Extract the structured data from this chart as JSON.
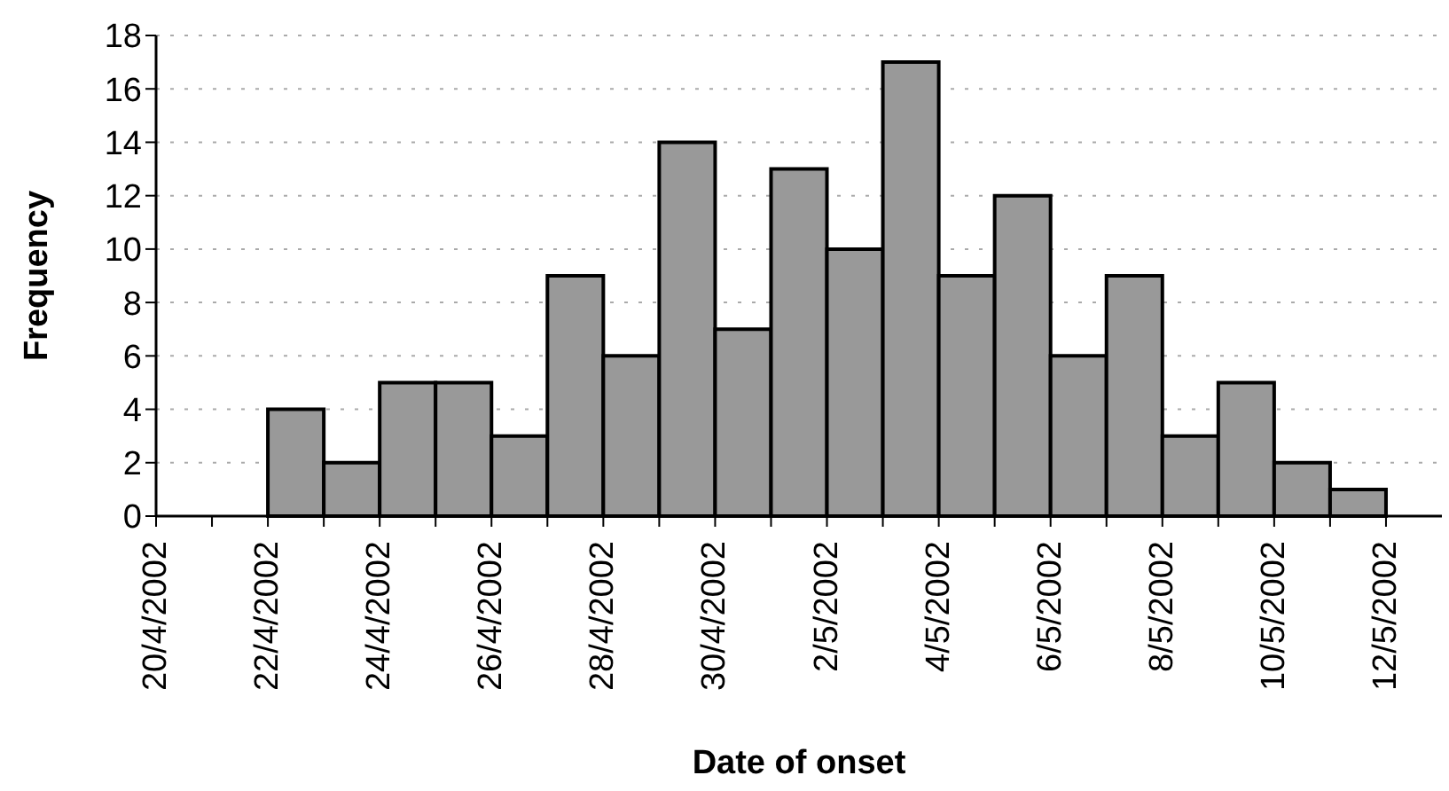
{
  "chart_data": {
    "type": "histogram",
    "xlabel": "Date of onset",
    "ylabel": "Frequency",
    "bins": [
      "2002-04-20",
      "2002-04-21",
      "2002-04-22",
      "2002-04-23",
      "2002-04-24",
      "2002-04-25",
      "2002-04-26",
      "2002-04-27",
      "2002-04-28",
      "2002-04-29",
      "2002-04-30",
      "2002-05-01",
      "2002-05-02",
      "2002-05-03",
      "2002-05-04",
      "2002-05-05",
      "2002-05-06",
      "2002-05-07",
      "2002-05-08",
      "2002-05-09",
      "2002-05-10",
      "2002-05-11",
      "2002-05-12"
    ],
    "values": [
      0,
      0,
      4,
      2,
      5,
      5,
      3,
      9,
      6,
      14,
      7,
      13,
      10,
      17,
      9,
      12,
      6,
      9,
      3,
      5,
      2,
      1
    ],
    "color": "#999999",
    "xlim": [
      "2002-04-20",
      "2002-05-13"
    ],
    "xticks": [
      {
        "value": "2002-04-20",
        "label": "20/4/2002"
      },
      {
        "value": "2002-04-21",
        "label": null
      },
      {
        "value": "2002-04-22",
        "label": "22/4/2002"
      },
      {
        "value": "2002-04-23",
        "label": null
      },
      {
        "value": "2002-04-24",
        "label": "24/4/2002"
      },
      {
        "value": "2002-04-25",
        "label": null
      },
      {
        "value": "2002-04-26",
        "label": "26/4/2002"
      },
      {
        "value": "2002-04-27",
        "label": null
      },
      {
        "value": "2002-04-28",
        "label": "28/4/2002"
      },
      {
        "value": "2002-04-29",
        "label": null
      },
      {
        "value": "2002-04-30",
        "label": "30/4/2002"
      },
      {
        "value": "2002-05-01",
        "label": null
      },
      {
        "value": "2002-05-02",
        "label": "2/5/2002"
      },
      {
        "value": "2002-05-03",
        "label": null
      },
      {
        "value": "2002-05-04",
        "label": "4/5/2002"
      },
      {
        "value": "2002-05-05",
        "label": null
      },
      {
        "value": "2002-05-06",
        "label": "6/5/2002"
      },
      {
        "value": "2002-05-07",
        "label": null
      },
      {
        "value": "2002-05-08",
        "label": "8/5/2002"
      },
      {
        "value": "2002-05-09",
        "label": null
      },
      {
        "value": "2002-05-10",
        "label": "10/5/2002"
      },
      {
        "value": "2002-05-11",
        "label": null
      },
      {
        "value": "2002-05-12",
        "label": "12/5/2002"
      }
    ],
    "ylim": [
      0,
      18
    ],
    "yticks": [
      0,
      2,
      4,
      6,
      8,
      10,
      12,
      14,
      16,
      18
    ],
    "grid": "y"
  }
}
